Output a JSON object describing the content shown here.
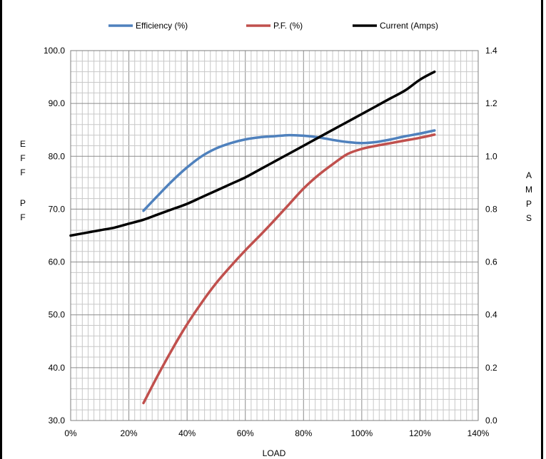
{
  "chart_data": {
    "type": "line",
    "xlabel": "LOAD",
    "ylabel_left": "EFF PF",
    "ylabel_right": "AMPS",
    "x_ticks": [
      "0%",
      "20%",
      "40%",
      "60%",
      "80%",
      "100%",
      "120%",
      "140%"
    ],
    "y_left_ticks": [
      "30.0",
      "40.0",
      "50.0",
      "60.0",
      "70.0",
      "80.0",
      "90.0",
      "100.0"
    ],
    "y_right_ticks": [
      "0.0",
      "0.2",
      "0.4",
      "0.6",
      "0.8",
      "1.0",
      "1.2",
      "1.4"
    ],
    "xlim": [
      0,
      140
    ],
    "ylim_left": [
      30,
      100
    ],
    "ylim_right": [
      0,
      1.4
    ],
    "grid": true,
    "legend_position": "top",
    "series": [
      {
        "name": "Efficiency (%)",
        "axis": "left",
        "color": "#4f81bd",
        "x": [
          25,
          30,
          35,
          40,
          45,
          50,
          55,
          60,
          65,
          70,
          75,
          80,
          85,
          90,
          95,
          100,
          105,
          110,
          115,
          120,
          125
        ],
        "y": [
          69.7,
          72.6,
          75.4,
          77.9,
          80.0,
          81.5,
          82.5,
          83.2,
          83.6,
          83.8,
          84.0,
          83.9,
          83.6,
          83.1,
          82.7,
          82.5,
          82.7,
          83.2,
          83.8,
          84.3,
          84.9
        ]
      },
      {
        "name": "P.F. (%)",
        "axis": "left",
        "color": "#c0504d",
        "x": [
          25,
          30,
          35,
          40,
          45,
          50,
          55,
          60,
          65,
          70,
          75,
          80,
          85,
          90,
          95,
          100,
          105,
          110,
          115,
          120,
          125
        ],
        "y": [
          33.3,
          38.6,
          43.6,
          48.2,
          52.3,
          56.0,
          59.2,
          62.2,
          65.0,
          67.9,
          70.9,
          73.9,
          76.4,
          78.5,
          80.4,
          81.4,
          82.0,
          82.5,
          83.0,
          83.5,
          84.1
        ]
      },
      {
        "name": "Current (Amps)",
        "axis": "right",
        "color": "#000000",
        "x": [
          0,
          5,
          10,
          15,
          20,
          25,
          30,
          35,
          40,
          45,
          50,
          55,
          60,
          65,
          70,
          75,
          80,
          85,
          90,
          95,
          100,
          105,
          110,
          115,
          120,
          125
        ],
        "y": [
          0.7,
          0.71,
          0.72,
          0.73,
          0.745,
          0.76,
          0.78,
          0.8,
          0.82,
          0.845,
          0.87,
          0.895,
          0.92,
          0.95,
          0.98,
          1.01,
          1.04,
          1.07,
          1.1,
          1.13,
          1.16,
          1.19,
          1.22,
          1.25,
          1.29,
          1.32
        ]
      }
    ]
  }
}
